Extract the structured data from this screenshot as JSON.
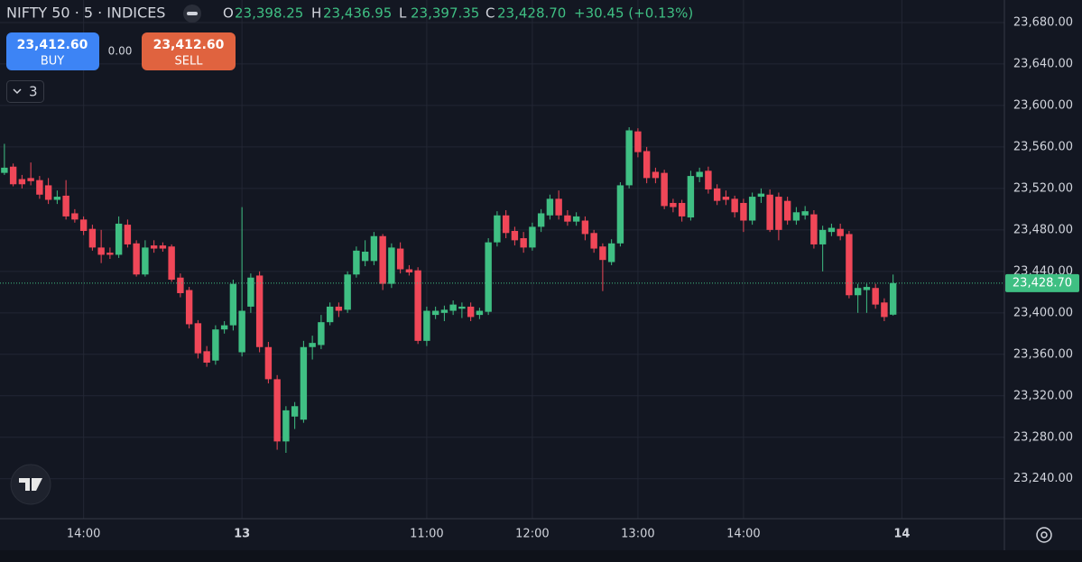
{
  "toolbar": {
    "symbol": "NIFTY 50 · 5 · INDICES",
    "ohlc": [
      {
        "label": "O",
        "value": "23,398.25"
      },
      {
        "label": "H",
        "value": "23,436.95"
      },
      {
        "label": "L",
        "value": "23,397.35"
      },
      {
        "label": "C",
        "value": "23,428.70"
      }
    ],
    "change": "+30.45 (+0.13%)",
    "buy": {
      "price": "23,412.60",
      "label": "BUY"
    },
    "spread": "0.00",
    "sell": {
      "price": "23,412.60",
      "label": "SELL"
    },
    "indicators": "3"
  },
  "chart_data": {
    "type": "candlestick",
    "up_color": "#3fbf83",
    "down_color": "#f04758",
    "grid": true,
    "open": [
      23535,
      23541,
      23529,
      23530,
      23528,
      23523,
      23509,
      23513,
      23496,
      23490,
      23481,
      23463,
      23458,
      23456,
      23485,
      23467,
      23437,
      23465,
      23465,
      23464,
      23434,
      23422,
      23390,
      23363,
      23354,
      23384,
      23388,
      23362,
      23406,
      23436,
      23367,
      23336,
      23276,
      23300,
      23297,
      23367,
      23369,
      23391,
      23406,
      23403,
      23437,
      23450,
      23450,
      23474,
      23428,
      23462,
      23442,
      23441,
      23373,
      23398,
      23400,
      23402,
      23404,
      23406,
      23398,
      23401,
      23468,
      23494,
      23479,
      23472,
      23463,
      23483,
      23494,
      23510,
      23494,
      23488,
      23489,
      23477,
      23464,
      23449,
      23467,
      23523,
      23575,
      23556,
      23536,
      23535,
      23506,
      23506,
      23492,
      23531,
      23537,
      23520,
      23512,
      23510,
      23506,
      23489,
      23512,
      23514,
      23512,
      23508,
      23489,
      23494,
      23495,
      23466,
      23478,
      23481,
      23476,
      23417,
      23422,
      23424,
      23410,
      23398.25
    ],
    "high": [
      23563,
      23544,
      23533,
      23545,
      23532,
      23530,
      23518,
      23528,
      23500,
      23493,
      23485,
      23480,
      23463,
      23493,
      23490,
      23470,
      23470,
      23470,
      23468,
      23466,
      23438,
      23425,
      23393,
      23368,
      23388,
      23392,
      23432,
      23502,
      23438,
      23440,
      23372,
      23340,
      23310,
      23314,
      23373,
      23378,
      23398,
      23410,
      23410,
      23440,
      23464,
      23470,
      23478,
      23476,
      23467,
      23468,
      23446,
      23444,
      23406,
      23406,
      23407,
      23412,
      23410,
      23410,
      23405,
      23472,
      23498,
      23499,
      23483,
      23478,
      23487,
      23500,
      23514,
      23518,
      23499,
      23497,
      23493,
      23480,
      23467,
      23471,
      23526,
      23579,
      23578,
      23560,
      23540,
      23538,
      23510,
      23509,
      23537,
      23540,
      23541,
      23524,
      23518,
      23513,
      23510,
      23516,
      23520,
      23519,
      23516,
      23512,
      23502,
      23503,
      23499,
      23484,
      23486,
      23486,
      23479,
      23428,
      23428,
      23428,
      23414,
      23436.95
    ],
    "low": [
      23533,
      23522,
      23520,
      23523,
      23510,
      23505,
      23505,
      23490,
      23487,
      23475,
      23460,
      23448,
      23452,
      23453,
      23463,
      23435,
      23435,
      23458,
      23459,
      23430,
      23415,
      23385,
      23356,
      23348,
      23350,
      23380,
      23383,
      23358,
      23400,
      23362,
      23332,
      23268,
      23265,
      23288,
      23294,
      23355,
      23365,
      23388,
      23396,
      23400,
      23434,
      23445,
      23446,
      23422,
      23424,
      23438,
      23436,
      23370,
      23368,
      23394,
      23392,
      23398,
      23395,
      23392,
      23394,
      23398,
      23464,
      23472,
      23465,
      23458,
      23460,
      23478,
      23490,
      23490,
      23484,
      23484,
      23470,
      23458,
      23421,
      23446,
      23464,
      23520,
      23550,
      23525,
      23525,
      23500,
      23497,
      23488,
      23489,
      23526,
      23515,
      23504,
      23504,
      23492,
      23478,
      23485,
      23506,
      23478,
      23470,
      23485,
      23485,
      23490,
      23462,
      23440,
      23474,
      23470,
      23414,
      23400,
      23400,
      23404,
      23392,
      23397.35
    ],
    "close": [
      23540,
      23524,
      23524,
      23527,
      23514,
      23509,
      23512,
      23493,
      23490,
      23479,
      23463,
      23456,
      23456,
      23486,
      23466,
      23437,
      23463,
      23462,
      23462,
      23432,
      23419,
      23389,
      23361,
      23352,
      23384,
      23388,
      23428,
      23402,
      23434,
      23367,
      23336,
      23276,
      23306,
      23310,
      23367,
      23371,
      23391,
      23406,
      23402,
      23437,
      23460,
      23459,
      23474,
      23428,
      23463,
      23442,
      23439,
      23373,
      23402,
      23402,
      23403,
      23408,
      23406,
      23396,
      23402,
      23468,
      23494,
      23477,
      23470,
      23463,
      23483,
      23496,
      23510,
      23494,
      23488,
      23493,
      23476,
      23462,
      23451,
      23467,
      23523,
      23576,
      23555,
      23530,
      23530,
      23503,
      23502,
      23493,
      23532,
      23536,
      23519,
      23508,
      23509,
      23497,
      23489,
      23512,
      23515,
      23480,
      23480,
      23489,
      23497,
      23498,
      23466,
      23480,
      23482,
      23474,
      23417,
      23424,
      23425,
      23408,
      23396,
      23428.7
    ],
    "xlim": [
      -0.5,
      113.65
    ],
    "xticks": [
      {
        "value": 9,
        "label": "14:00"
      },
      {
        "value": 27,
        "label": "13"
      },
      {
        "value": 48,
        "label": "11:00"
      },
      {
        "value": 60,
        "label": "12:00"
      },
      {
        "value": 72,
        "label": "13:00"
      },
      {
        "value": 84,
        "label": "14:00"
      },
      {
        "value": 102,
        "label": "14"
      }
    ],
    "ylim": [
      23201.5,
      23701.7
    ],
    "yticks": [
      {
        "value": 23240,
        "label": "23,240.00"
      },
      {
        "value": 23280,
        "label": "23,280.00"
      },
      {
        "value": 23320,
        "label": "23,320.00"
      },
      {
        "value": 23360,
        "label": "23,360.00"
      },
      {
        "value": 23400,
        "label": "23,400.00"
      },
      {
        "value": 23440,
        "label": "23,440.00"
      },
      {
        "value": 23480,
        "label": "23,480.00"
      },
      {
        "value": 23520,
        "label": "23,520.00"
      },
      {
        "value": 23560,
        "label": "23,560.00"
      },
      {
        "value": 23600,
        "label": "23,600.00"
      },
      {
        "value": 23640,
        "label": "23,640.00"
      },
      {
        "value": 23680,
        "label": "23,680.00"
      }
    ],
    "last_price": {
      "value": 23428.7,
      "label": "23,428.70"
    }
  }
}
